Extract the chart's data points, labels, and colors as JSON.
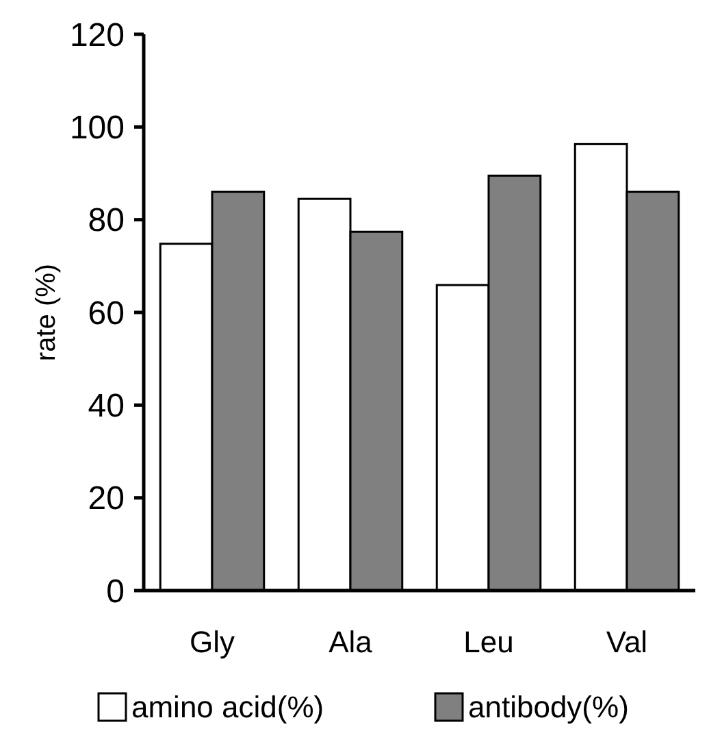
{
  "chart_data": {
    "type": "bar",
    "ylabel": "rate (%)",
    "categories": [
      "Gly",
      "Ala",
      "Leu",
      "Val"
    ],
    "series": [
      {
        "name": "amino acid(%)",
        "color": "#ffffff",
        "values": [
          74.8,
          84.5,
          65.9,
          96.3
        ]
      },
      {
        "name": "antibody(%)",
        "color": "#808080",
        "values": [
          86,
          77.4,
          89.5,
          86
        ]
      }
    ],
    "ylim": [
      0,
      120
    ],
    "yticks": [
      0,
      20,
      40,
      60,
      80,
      100,
      120
    ],
    "grid": false,
    "legend": "bottom"
  }
}
